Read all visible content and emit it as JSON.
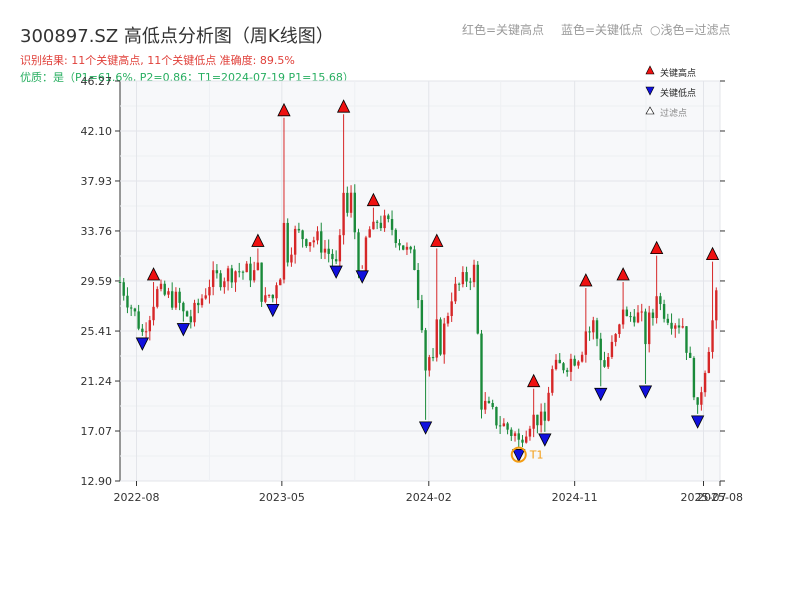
{
  "header": {
    "title": "300897.SZ 高低点分析图（周K线图）",
    "result_line": "识别结果: 11个关键高点, 11个关键低点   准确度: 89.5%",
    "quality_line": "优质：是（P1=61.6%, P2=0.86；T1=2024-07-19 P1=15.68）",
    "legend_red": "红色=关键高点",
    "legend_blue": "蓝色=关键低点",
    "legend_light": "○浅色=过滤点"
  },
  "legend": {
    "high": "关键高点",
    "low": "关键低点",
    "filtered": "过滤点"
  },
  "colors": {
    "up": "#d62728",
    "down": "#1a8a3a",
    "high_marker": "#ee1111",
    "low_marker": "#1111dd",
    "t1_ring": "#f39c12",
    "plot_bg": "#f7f8fa"
  },
  "chart_data": {
    "type": "candlestick",
    "ylim": [
      12.9,
      46.27
    ],
    "yticks": [
      12.9,
      17.07,
      21.24,
      25.41,
      29.59,
      33.76,
      37.93,
      42.1,
      46.27
    ],
    "ytick_labels": [
      "12.90",
      "17.07",
      "21.24",
      "25.41",
      "29.59",
      "33.76",
      "37.93",
      "42.10",
      "46.27"
    ],
    "x_start": "2022-07-01",
    "x_end": "2025-08-01",
    "xticks": [
      "2022-08",
      "2023-05",
      "2024-02",
      "2024-11",
      "2025-07",
      "2025-08"
    ],
    "anchors": [
      [
        "2022-07-01",
        29.5
      ],
      [
        "2022-08-12",
        25.4
      ],
      [
        "2022-09-09",
        28.6
      ],
      [
        "2022-10-14",
        28.0
      ],
      [
        "2022-11-11",
        26.3
      ],
      [
        "2022-12-16",
        29.5
      ],
      [
        "2023-02-03",
        30.5
      ],
      [
        "2023-03-10",
        30.2
      ],
      [
        "2023-03-31",
        27.8
      ],
      [
        "2023-05-05",
        31.0
      ],
      [
        "2023-05-26",
        33.5
      ],
      [
        "2023-07-07",
        33.0
      ],
      [
        "2023-08-11",
        31.2
      ],
      [
        "2023-09-08",
        36.5
      ],
      [
        "2023-09-22",
        31.0
      ],
      [
        "2023-10-20",
        34.8
      ],
      [
        "2023-11-24",
        34.0
      ],
      [
        "2024-01-05",
        31.0
      ],
      [
        "2024-01-26",
        24.0
      ],
      [
        "2024-02-09",
        22.5
      ],
      [
        "2024-02-23",
        24.2
      ],
      [
        "2024-03-15",
        28.5
      ],
      [
        "2024-04-26",
        30.5
      ],
      [
        "2024-05-10",
        19.5
      ],
      [
        "2024-06-07",
        18.0
      ],
      [
        "2024-07-19",
        16.5
      ],
      [
        "2024-08-16",
        18.5
      ],
      [
        "2024-08-30",
        17.8
      ],
      [
        "2024-09-20",
        22.0
      ],
      [
        "2024-10-18",
        22.8
      ],
      [
        "2024-11-08",
        23.5
      ],
      [
        "2024-12-06",
        26.0
      ],
      [
        "2024-12-27",
        22.5
      ],
      [
        "2025-01-24",
        25.5
      ],
      [
        "2025-02-21",
        27.0
      ],
      [
        "2025-03-14",
        25.8
      ],
      [
        "2025-04-11",
        27.5
      ],
      [
        "2025-05-02",
        26.5
      ],
      [
        "2025-05-23",
        26.0
      ],
      [
        "2025-06-20",
        19.0
      ],
      [
        "2025-07-25",
        28.0
      ]
    ],
    "spikes": [
      [
        "2022-08-12",
        "low",
        25.0
      ],
      [
        "2022-09-02",
        "high",
        29.5
      ],
      [
        "2022-10-28",
        "low",
        26.2
      ],
      [
        "2023-03-17",
        "high",
        32.3
      ],
      [
        "2023-04-14",
        "low",
        27.8
      ],
      [
        "2023-05-05",
        "high",
        43.2
      ],
      [
        "2023-08-11",
        "low",
        31.0
      ],
      [
        "2023-08-25",
        "high",
        43.5
      ],
      [
        "2023-09-29",
        "low",
        30.6
      ],
      [
        "2023-10-20",
        "high",
        35.7
      ],
      [
        "2024-01-26",
        "low",
        18.0
      ],
      [
        "2024-02-16",
        "high",
        32.3
      ],
      [
        "2024-07-19",
        "low",
        15.7
      ],
      [
        "2024-08-16",
        "high",
        20.6
      ],
      [
        "2024-09-06",
        "low",
        17.0
      ],
      [
        "2024-11-22",
        "high",
        29.0
      ],
      [
        "2024-12-20",
        "low",
        20.8
      ],
      [
        "2025-01-31",
        "high",
        29.5
      ],
      [
        "2025-03-14",
        "low",
        21.0
      ],
      [
        "2025-04-04",
        "high",
        31.7
      ],
      [
        "2025-06-20",
        "low",
        18.5
      ],
      [
        "2025-07-18",
        "high",
        31.2
      ]
    ],
    "key_highs": [
      [
        "2022-09-02",
        29.5
      ],
      [
        "2023-03-17",
        32.3
      ],
      [
        "2023-05-05",
        43.2
      ],
      [
        "2023-08-25",
        43.5
      ],
      [
        "2023-10-20",
        35.7
      ],
      [
        "2024-02-16",
        32.3
      ],
      [
        "2024-08-16",
        20.6
      ],
      [
        "2024-11-22",
        29.0
      ],
      [
        "2025-01-31",
        29.5
      ],
      [
        "2025-04-04",
        31.7
      ],
      [
        "2025-07-18",
        31.2
      ]
    ],
    "key_lows": [
      [
        "2022-08-12",
        25.0
      ],
      [
        "2022-10-28",
        26.2
      ],
      [
        "2023-04-14",
        27.8
      ],
      [
        "2023-08-11",
        31.0
      ],
      [
        "2023-09-29",
        30.6
      ],
      [
        "2024-01-26",
        18.0
      ],
      [
        "2024-07-19",
        15.7
      ],
      [
        "2024-09-06",
        17.0
      ],
      [
        "2024-12-20",
        20.8
      ],
      [
        "2025-03-14",
        21.0
      ],
      [
        "2025-06-20",
        18.5
      ]
    ],
    "t1": {
      "date": "2024-07-19",
      "price": 15.68,
      "label": "T1"
    }
  }
}
